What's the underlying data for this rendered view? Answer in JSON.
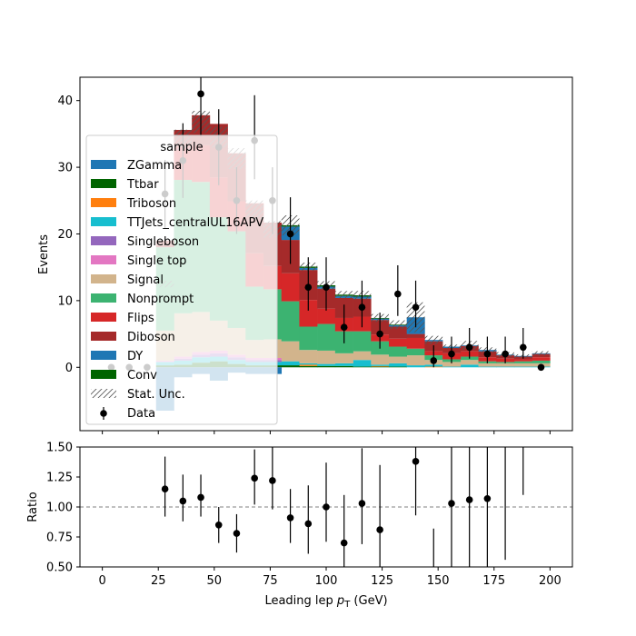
{
  "chart_data": [
    {
      "type": "bar",
      "subtype": "stacked-histogram",
      "xlabel_text": "Leading lep ",
      "xlabel_var": "p",
      "xlabel_sub": "T",
      "xlabel_unit": " (GeV)",
      "ylabel": "Events",
      "xlim": [
        -10,
        210
      ],
      "ylim": [
        -9.5,
        43.5
      ],
      "xticks": [
        "0",
        "25",
        "50",
        "75",
        "100",
        "125",
        "150",
        "175",
        "200"
      ],
      "xtick_values": [
        0,
        25,
        50,
        75,
        100,
        125,
        150,
        175,
        200
      ],
      "yticks": [
        "0",
        "10",
        "20",
        "30",
        "40"
      ],
      "ytick_values": [
        0,
        10,
        20,
        30,
        40
      ],
      "bin_edges": [
        0,
        8,
        16,
        24,
        32,
        40,
        48,
        56,
        64,
        72,
        80,
        88,
        96,
        104,
        112,
        120,
        128,
        136,
        144,
        152,
        160,
        168,
        176,
        184,
        192,
        200
      ],
      "series": [
        {
          "name": "ZGamma",
          "color": "#1f77b4",
          "values": [
            0,
            0,
            0,
            0,
            0,
            0,
            0,
            0,
            0,
            0,
            0,
            0,
            0,
            0,
            0,
            0,
            0,
            0,
            0,
            0,
            0,
            0,
            0,
            0,
            0
          ]
        },
        {
          "name": "Ttbar",
          "color": "#006400",
          "values": [
            0,
            0,
            0,
            0.3,
            0.4,
            0.7,
            0.9,
            0.5,
            0.3,
            0.3,
            0.3,
            0.2,
            0.2,
            0.2,
            0.1,
            0.1,
            0.1,
            0,
            0,
            0,
            0,
            0,
            0,
            0,
            0
          ]
        },
        {
          "name": "Triboson",
          "color": "#ff7f0e",
          "values": [
            0,
            0,
            0,
            0,
            0,
            0,
            0,
            0,
            0,
            0,
            0,
            0.2,
            0,
            0,
            0,
            0.1,
            0,
            0,
            0.1,
            0,
            0,
            0,
            0,
            0,
            0
          ]
        },
        {
          "name": "TTJets_centralUL16APV",
          "color": "#17becf",
          "values": [
            0,
            0,
            0,
            0.5,
            0.6,
            0.8,
            0.7,
            0.6,
            0.5,
            0.5,
            0.6,
            0.2,
            0.3,
            0.4,
            1.0,
            0.2,
            0.5,
            0.3,
            0.3,
            0.1,
            0.4,
            0.1,
            0.1,
            0.1,
            0.1
          ]
        },
        {
          "name": "Singleboson",
          "color": "#9467bd",
          "values": [
            0,
            0,
            0,
            0,
            0.3,
            0.4,
            0.5,
            0.4,
            0.3,
            0.3,
            0,
            0,
            0,
            0,
            0,
            0,
            0,
            0,
            0,
            0,
            0,
            0,
            0,
            0,
            0
          ]
        },
        {
          "name": "Single top",
          "color": "#e377c2",
          "values": [
            0,
            0,
            0,
            0.2,
            0.3,
            0.4,
            0.4,
            0.4,
            0.3,
            0.3,
            0,
            0,
            0,
            0,
            0,
            0,
            0,
            0,
            0,
            0,
            0,
            0,
            0,
            0,
            0
          ]
        },
        {
          "name": "Signal",
          "color": "#d2b48c",
          "values": [
            0,
            0,
            0,
            4.5,
            6.5,
            6.0,
            4.5,
            4.0,
            2.7,
            2.8,
            3.0,
            2.0,
            2.0,
            1.5,
            1.3,
            1.5,
            1.0,
            1.5,
            0.7,
            0.7,
            0.7,
            0.5,
            0.5,
            0.5,
            0.5
          ]
        },
        {
          "name": "Nonprompt",
          "color": "#3cb371",
          "values": [
            0,
            0,
            0,
            12.5,
            20.0,
            19.5,
            15.5,
            14.5,
            8.0,
            7.5,
            6.0,
            3.5,
            4.0,
            3.3,
            3.0,
            2.0,
            1.5,
            1.0,
            0.7,
            0.4,
            0.5,
            0.3,
            0.2,
            0.3,
            0.4
          ]
        },
        {
          "name": "Flips",
          "color": "#d62728",
          "values": [
            0,
            0,
            0,
            0,
            5.0,
            5.5,
            6.0,
            4.5,
            5.0,
            3.5,
            4.2,
            4.0,
            2.3,
            2.0,
            2.2,
            1.0,
            1.2,
            1.6,
            0.6,
            0.9,
            0.8,
            0.6,
            0.5,
            0.3,
            0.5
          ]
        },
        {
          "name": "Diboson",
          "color": "#a52a2a",
          "values": [
            0,
            0,
            0,
            1.0,
            2.5,
            4.5,
            8.0,
            7.2,
            7.5,
            6.5,
            5.0,
            4.5,
            3.0,
            3.0,
            2.7,
            2.2,
            1.8,
            0.6,
            1.5,
            0.8,
            0.8,
            0.9,
            0.5,
            0.4,
            0.5
          ]
        },
        {
          "name": "DY",
          "color": "#1f77b4",
          "values": [
            0,
            0,
            0,
            -6.5,
            -1.5,
            -1.0,
            -2.0,
            -0.8,
            -1.0,
            -1.0,
            2.0,
            0.3,
            0.3,
            0.3,
            0.3,
            0.2,
            0.2,
            2.5,
            0.2,
            0.2,
            0.1,
            0.2,
            0.1,
            0.1,
            0.1
          ]
        },
        {
          "name": "Conv",
          "color": "#006400",
          "values": [
            0,
            0,
            0,
            0,
            0,
            0,
            0,
            0,
            0,
            0,
            0.2,
            0.2,
            0.2,
            0.2,
            0.2,
            0.1,
            0.1,
            0,
            0,
            0,
            0,
            0,
            0,
            0,
            0
          ]
        }
      ],
      "data": {
        "name": "Data",
        "x": [
          4,
          12,
          20,
          28,
          36,
          44,
          52,
          60,
          68,
          76,
          84,
          92,
          100,
          108,
          116,
          124,
          132,
          140,
          148,
          156,
          164,
          172,
          180,
          188,
          196
        ],
        "values": [
          0,
          0,
          0,
          26,
          31,
          41,
          33,
          25,
          34,
          25,
          20,
          12,
          12,
          6,
          9,
          5,
          11,
          9,
          1,
          2,
          3,
          2,
          2,
          3,
          0
        ],
        "err_low": [
          0,
          0,
          0,
          5.1,
          5.6,
          6.4,
          5.7,
          5.0,
          5.8,
          5.0,
          4.5,
          3.5,
          3.5,
          2.4,
          3.0,
          2.2,
          3.3,
          3.0,
          1.0,
          1.4,
          1.7,
          1.4,
          1.4,
          1.7,
          0
        ],
        "err_high": [
          0,
          0,
          0,
          5.1,
          5.6,
          6.4,
          5.7,
          5.0,
          6.8,
          5.0,
          5.5,
          4.5,
          4.5,
          3.4,
          4.0,
          3.2,
          4.3,
          4.0,
          2.3,
          2.6,
          2.9,
          2.6,
          2.6,
          2.9,
          0
        ],
        "color": "#000000"
      },
      "stat_unc": {
        "name": "Stat. Unc.",
        "relative": [
          0,
          0,
          0,
          0.04,
          0.045,
          0.045,
          0.045,
          0.05,
          0.06,
          0.06,
          0.07,
          0.04,
          0.05,
          0.05,
          0.06,
          0.08,
          0.1,
          0.3,
          0.15,
          0.1,
          0.2,
          0.15,
          0.2,
          0.15,
          0.15
        ]
      },
      "legend": {
        "title": "sample",
        "placement": "center-left"
      }
    },
    {
      "type": "scatter",
      "subtype": "ratio",
      "ylabel": "Ratio",
      "xlim": [
        -10,
        210
      ],
      "ylim": [
        0.5,
        1.5
      ],
      "reference_line": 1.0,
      "xticks": [
        "0",
        "25",
        "50",
        "75",
        "100",
        "125",
        "150",
        "175",
        "200"
      ],
      "xtick_values": [
        0,
        25,
        50,
        75,
        100,
        125,
        150,
        175,
        200
      ],
      "yticks": [
        "0.50",
        "0.75",
        "1.00",
        "1.25",
        "1.50"
      ],
      "ytick_values": [
        0.5,
        0.75,
        1.0,
        1.25,
        1.5
      ],
      "points": [
        {
          "x": 28,
          "y": 1.15,
          "lo": 0.92,
          "hi": 1.42
        },
        {
          "x": 36,
          "y": 1.05,
          "lo": 0.88,
          "hi": 1.27
        },
        {
          "x": 44,
          "y": 1.08,
          "lo": 0.92,
          "hi": 1.27
        },
        {
          "x": 52,
          "y": 0.85,
          "lo": 0.7,
          "hi": 1.0
        },
        {
          "x": 60,
          "y": 0.78,
          "lo": 0.62,
          "hi": 0.94
        },
        {
          "x": 68,
          "y": 1.24,
          "lo": 1.02,
          "hi": 1.48
        },
        {
          "x": 76,
          "y": 1.22,
          "lo": 0.98,
          "hi": 1.5
        },
        {
          "x": 84,
          "y": 0.91,
          "lo": 0.7,
          "hi": 1.15
        },
        {
          "x": 92,
          "y": 0.86,
          "lo": 0.61,
          "hi": 1.18
        },
        {
          "x": 100,
          "y": 1.0,
          "lo": 0.71,
          "hi": 1.37
        },
        {
          "x": 108,
          "y": 0.7,
          "lo": 0.42,
          "hi": 1.1
        },
        {
          "x": 116,
          "y": 1.03,
          "lo": 0.69,
          "hi": 1.49
        },
        {
          "x": 124,
          "y": 0.81,
          "lo": 0.45,
          "hi": 1.35
        },
        {
          "x": 140,
          "y": 1.38,
          "lo": 0.93,
          "hi": 1.95
        },
        {
          "x": 148,
          "y": null,
          "lo": 0.4,
          "hi": 0.82
        },
        {
          "x": 156,
          "y": 1.03,
          "lo": 0.33,
          "hi": 2.3
        },
        {
          "x": 164,
          "y": 1.06,
          "lo": 0.45,
          "hi": 2.1
        },
        {
          "x": 172,
          "y": 1.07,
          "lo": 0.35,
          "hi": 2.4
        },
        {
          "x": 180,
          "y": null,
          "lo": 0.56,
          "hi": 2.3
        },
        {
          "x": 188,
          "y": null,
          "lo": 1.1,
          "hi": 2.5
        }
      ]
    }
  ]
}
